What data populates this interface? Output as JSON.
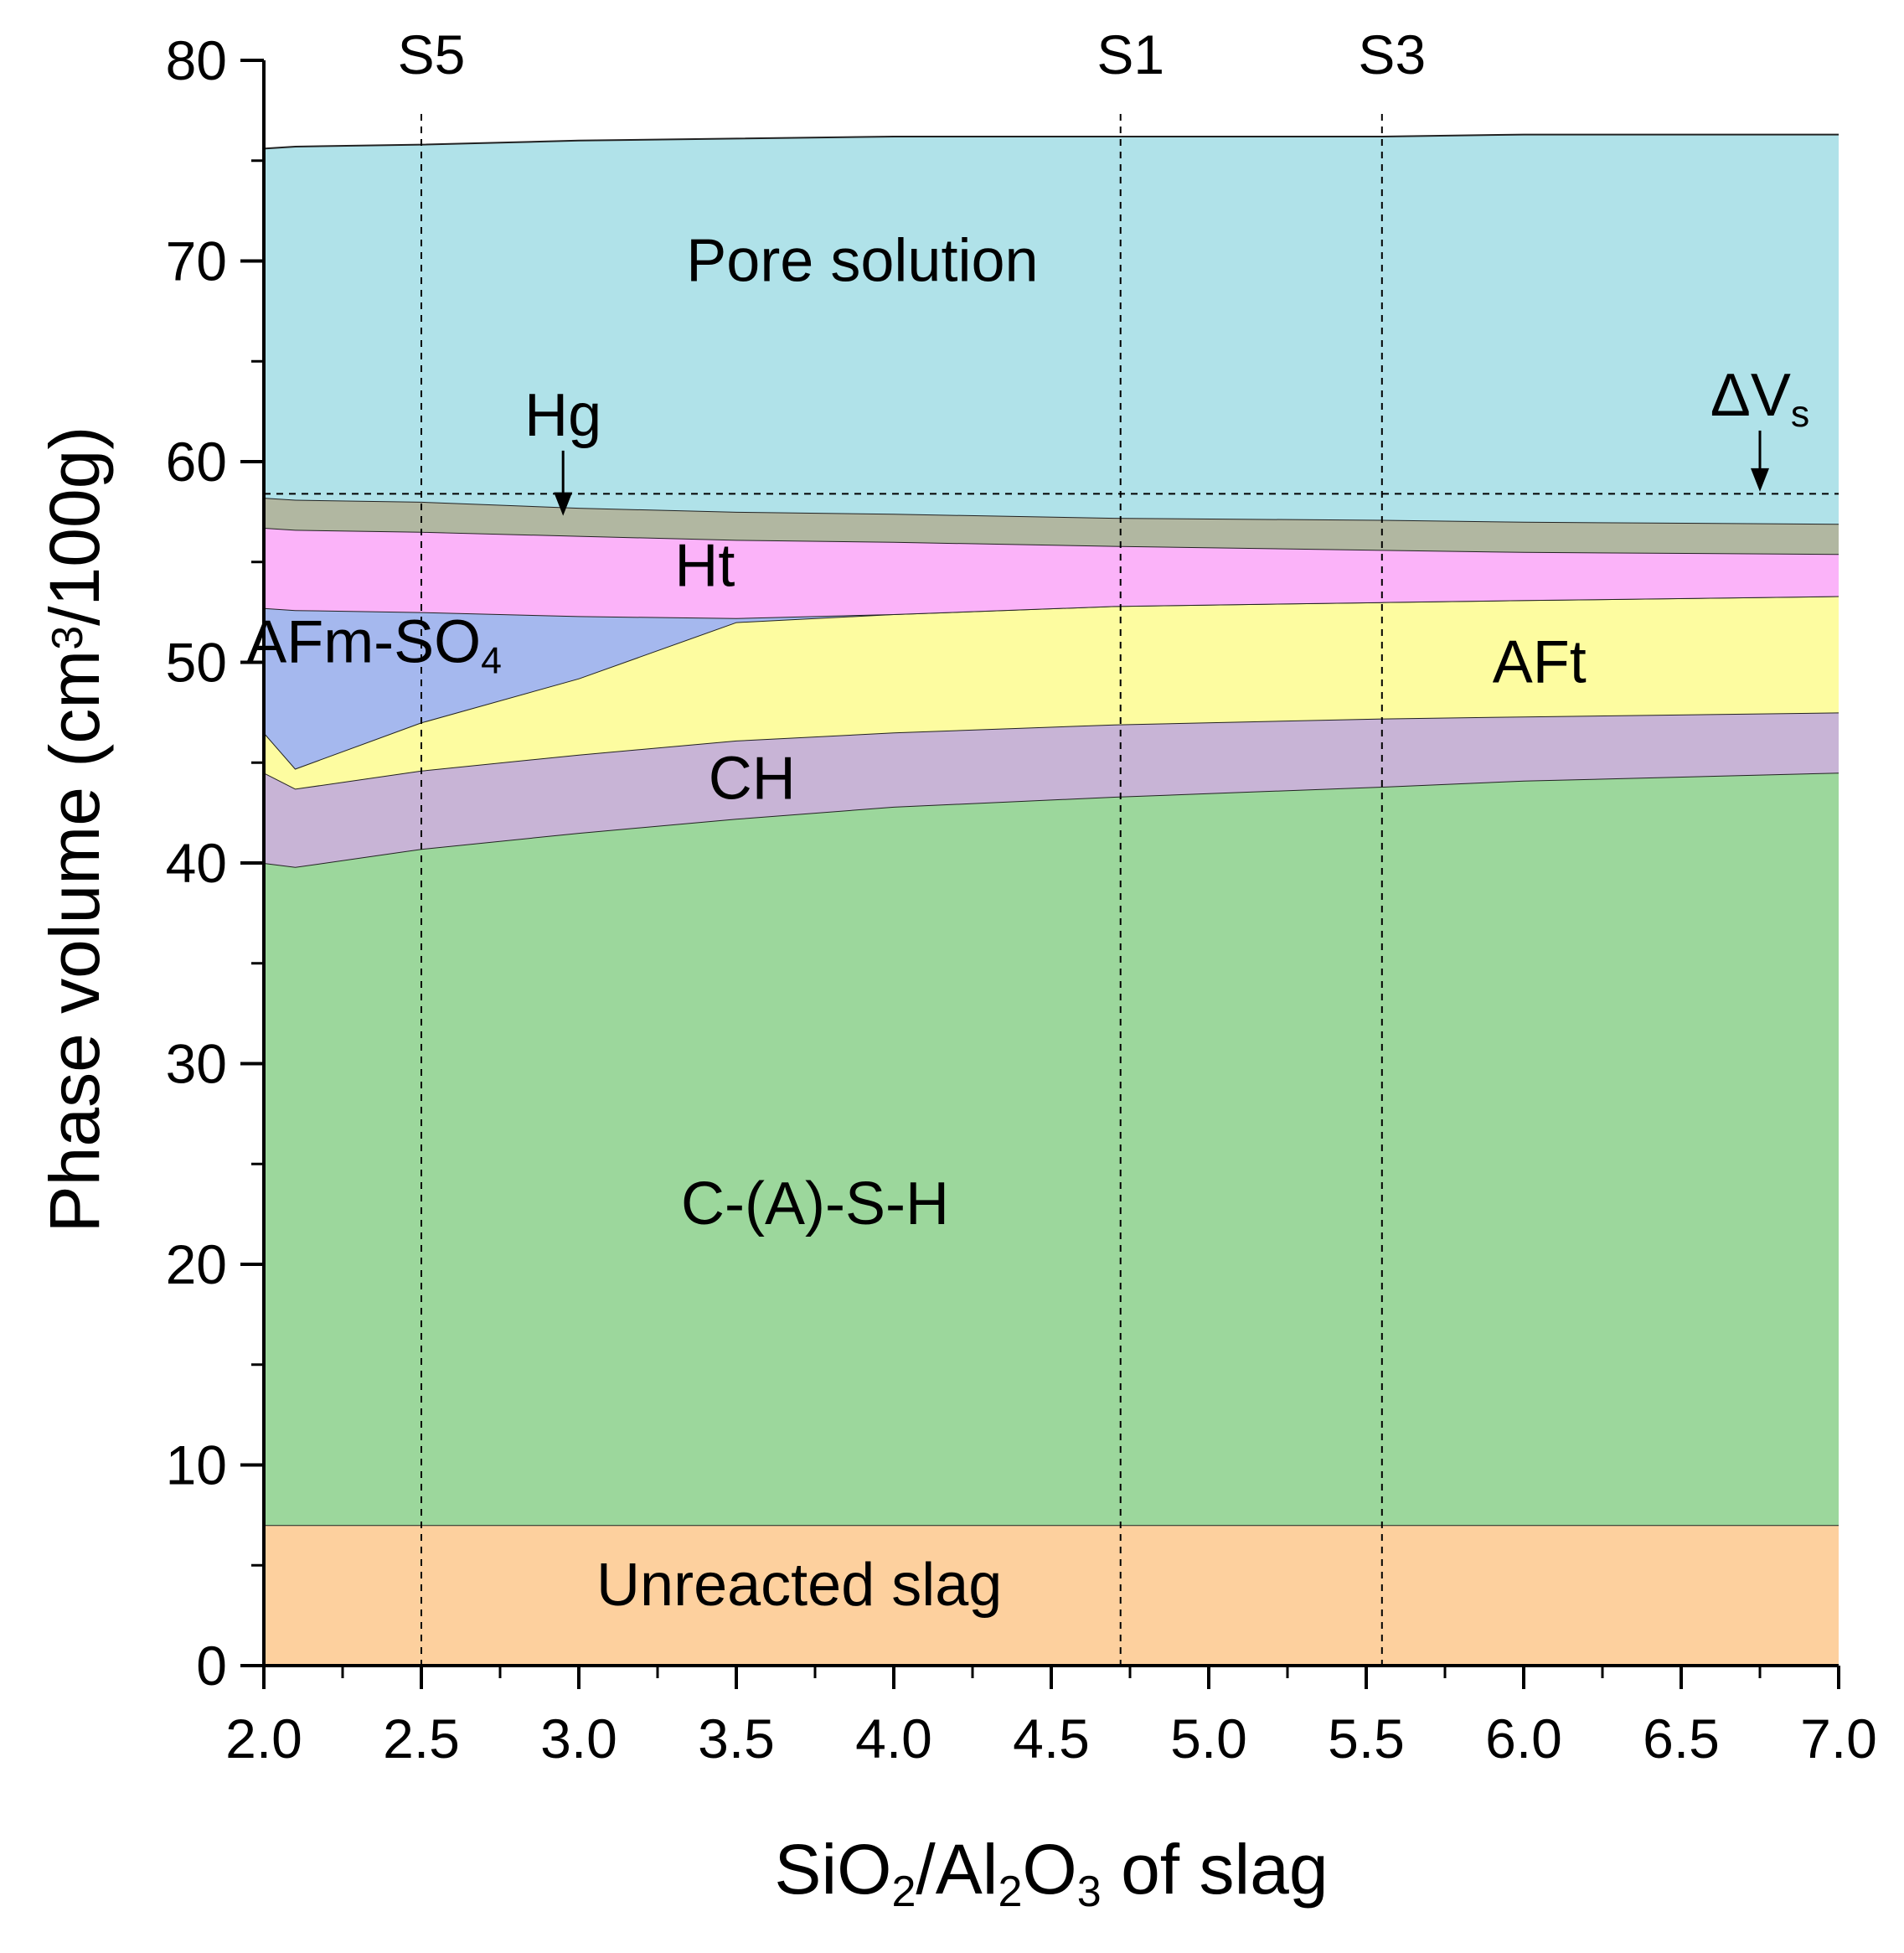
{
  "chart_data": {
    "type": "area",
    "title": "",
    "xlabel": {
      "parts": [
        {
          "t": "SiO"
        },
        {
          "t": "2",
          "sub": true
        },
        {
          "t": "/Al"
        },
        {
          "t": "2",
          "sub": true
        },
        {
          "t": "O"
        },
        {
          "t": "3",
          "sub": true
        },
        {
          "t": " of slag"
        }
      ]
    },
    "ylabel": {
      "parts": [
        {
          "t": "Phase volume (cm"
        },
        {
          "t": "3",
          "sup": true
        },
        {
          "t": "/100g)"
        }
      ]
    },
    "xlim": [
      2.0,
      7.0
    ],
    "ylim": [
      0,
      80
    ],
    "x_ticks": [
      "2.0",
      "2.5",
      "3.0",
      "3.5",
      "4.0",
      "4.5",
      "5.0",
      "5.5",
      "6.0",
      "6.5",
      "7.0"
    ],
    "y_ticks": [
      "0",
      "10",
      "20",
      "30",
      "40",
      "50",
      "60",
      "70",
      "80"
    ],
    "x_minor_step": 0.25,
    "y_minor_step": 5,
    "grid": false,
    "x": [
      2.0,
      2.1,
      2.5,
      3.0,
      3.5,
      4.0,
      4.7,
      5.55,
      6.0,
      7.0
    ],
    "series": [
      {
        "name": "Unreacted slag",
        "color": "#fdd09e",
        "upper": [
          7.0,
          7.0,
          7.0,
          7.0,
          7.0,
          7.0,
          7.0,
          7.0,
          7.0,
          7.0
        ]
      },
      {
        "name": "C-(A)-S-H",
        "color": "#9cd79c",
        "upper": [
          40.0,
          39.8,
          40.7,
          41.5,
          42.2,
          42.8,
          43.3,
          43.8,
          44.1,
          44.5
        ]
      },
      {
        "name": "CH",
        "color": "#c8b4d6",
        "upper": [
          44.5,
          43.7,
          44.6,
          45.4,
          46.1,
          46.5,
          46.9,
          47.2,
          47.3,
          47.5
        ]
      },
      {
        "name": "AFt",
        "color": "#fdfca0",
        "upper": [
          46.5,
          44.7,
          47.0,
          49.2,
          52.0,
          52.4,
          52.8,
          53.0,
          53.1,
          53.3
        ]
      },
      {
        "name": "AFm-SO4",
        "color": "#a5b8ee",
        "upper": [
          52.7,
          52.6,
          52.5,
          52.3,
          52.2,
          52.4,
          52.8,
          53.0,
          53.1,
          53.3
        ]
      },
      {
        "name": "Ht",
        "color": "#fbb3f9",
        "upper": [
          56.7,
          56.6,
          56.5,
          56.3,
          56.1,
          56.0,
          55.8,
          55.6,
          55.5,
          55.4
        ]
      },
      {
        "name": "Hg",
        "color": "#b1b7a1",
        "upper": [
          58.2,
          58.1,
          58.0,
          57.7,
          57.5,
          57.4,
          57.2,
          57.1,
          57.0,
          56.9
        ]
      },
      {
        "name": "Pore solution",
        "color": "#b0e2e9",
        "upper": [
          75.6,
          75.7,
          75.8,
          76.0,
          76.1,
          76.2,
          76.2,
          76.2,
          76.3,
          76.3
        ]
      }
    ],
    "area_labels": [
      {
        "parts": [
          {
            "t": "Unreacted slag"
          }
        ],
        "x": 3.7,
        "y": 3.0
      },
      {
        "parts": [
          {
            "t": "C-(A)-S-H"
          }
        ],
        "x": 3.75,
        "y": 22.0
      },
      {
        "parts": [
          {
            "t": "CH"
          }
        ],
        "x": 3.55,
        "y": 43.2
      },
      {
        "parts": [
          {
            "t": "AFt"
          }
        ],
        "x": 6.05,
        "y": 49.0
      },
      {
        "parts": [
          {
            "t": "AFm-SO"
          },
          {
            "t": "4",
            "sub": true
          }
        ],
        "x": 2.35,
        "y": 50.0
      },
      {
        "parts": [
          {
            "t": "Ht"
          }
        ],
        "x": 3.4,
        "y": 53.8
      },
      {
        "parts": [
          {
            "t": "Pore solution"
          }
        ],
        "x": 3.9,
        "y": 69.0
      }
    ],
    "annotations": [
      {
        "parts": [
          {
            "t": "Hg"
          }
        ],
        "x": 2.95,
        "y": 61.3,
        "arrow_to_y": 57.3
      },
      {
        "parts": [
          {
            "t": "ΔV"
          },
          {
            "t": "s",
            "sub": true
          }
        ],
        "x": 6.75,
        "y": 62.3,
        "arrow_to_y": 58.5
      }
    ],
    "reference_hline": {
      "y": 58.4,
      "style": "dashed"
    },
    "reference_vlines": [
      {
        "label": "S5",
        "x": 2.5
      },
      {
        "label": "S1",
        "x": 4.72
      },
      {
        "label": "S3",
        "x": 5.55
      }
    ]
  }
}
